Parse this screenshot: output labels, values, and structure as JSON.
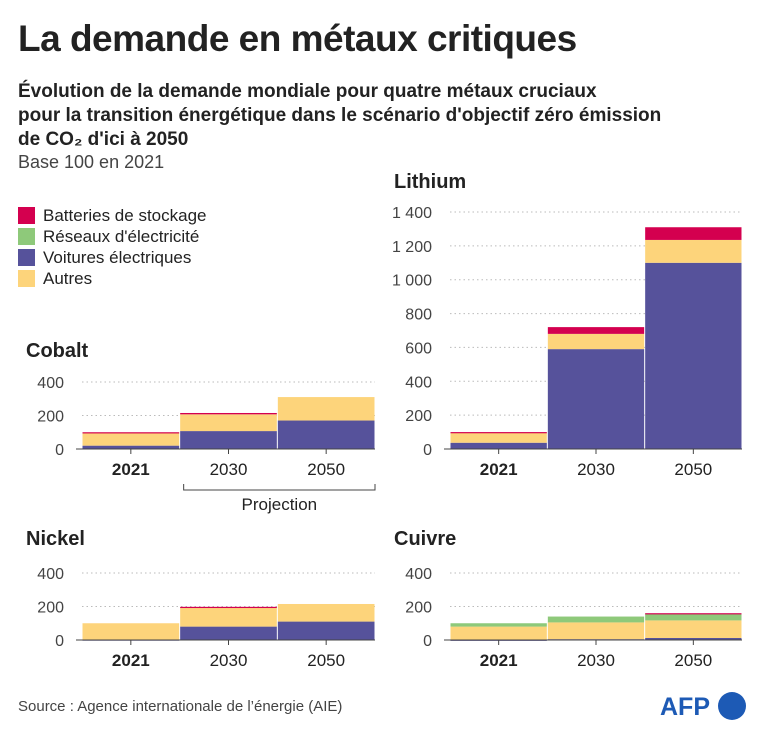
{
  "title": "La demande en métaux critiques",
  "subtitle": [
    "Évolution de la demande mondiale pour quatre métaux cruciaux",
    "pour la transition énergétique dans le scénario d'objectif zéro émission",
    "de CO₂ d'ici à 2050"
  ],
  "base": "Base 100 en 2021",
  "legend": [
    {
      "label": "Batteries de stockage",
      "color": "#d4004f"
    },
    {
      "label": "Réseaux d'électricité",
      "color": "#8ec97a"
    },
    {
      "label": "Voitures électriques",
      "color": "#56529b"
    },
    {
      "label": "Autres",
      "color": "#fdd47b"
    }
  ],
  "projection_label": "Projection",
  "source": "Source : Agence internationale de l’énergie (AIE)",
  "logo": "AFP",
  "chart_data": [
    {
      "type": "bar",
      "stacked": true,
      "title": "Cobalt",
      "categories": [
        "2021",
        "2030",
        "2050"
      ],
      "ylim": [
        0,
        400
      ],
      "yticks": [
        "0",
        "200",
        "400"
      ],
      "series": [
        {
          "name": "Voitures électriques",
          "values": [
            20,
            107,
            170
          ]
        },
        {
          "name": "Autres",
          "values": [
            79,
            100,
            140
          ]
        },
        {
          "name": "Réseaux d'électricité",
          "values": [
            0,
            0,
            0
          ]
        },
        {
          "name": "Batteries de stockage",
          "values": [
            1,
            8,
            0
          ]
        }
      ]
    },
    {
      "type": "bar",
      "stacked": true,
      "title": "Lithium",
      "categories": [
        "2021",
        "2030",
        "2050"
      ],
      "ylim": [
        0,
        1400
      ],
      "yticks": [
        "0",
        "200",
        "400",
        "600",
        "800",
        "1 000",
        "1 200",
        "1 400"
      ],
      "series": [
        {
          "name": "Voitures électriques",
          "values": [
            37,
            590,
            1100
          ]
        },
        {
          "name": "Autres",
          "values": [
            58,
            90,
            135
          ]
        },
        {
          "name": "Réseaux d'électricité",
          "values": [
            0,
            0,
            0
          ]
        },
        {
          "name": "Batteries de stockage",
          "values": [
            5,
            40,
            75
          ]
        }
      ]
    },
    {
      "type": "bar",
      "stacked": true,
      "title": "Nickel",
      "categories": [
        "2021",
        "2030",
        "2050"
      ],
      "ylim": [
        0,
        400
      ],
      "yticks": [
        "0",
        "200",
        "400"
      ],
      "series": [
        {
          "name": "Voitures électriques",
          "values": [
            3,
            80,
            110
          ]
        },
        {
          "name": "Autres",
          "values": [
            97,
            115,
            105
          ]
        },
        {
          "name": "Réseaux d'électricité",
          "values": [
            0,
            0,
            0
          ]
        },
        {
          "name": "Batteries de stockage",
          "values": [
            0,
            3,
            0
          ]
        }
      ]
    },
    {
      "type": "bar",
      "stacked": true,
      "title": "Cuivre",
      "categories": [
        "2021",
        "2030",
        "2050"
      ],
      "ylim": [
        0,
        400
      ],
      "yticks": [
        "0",
        "200",
        "400"
      ],
      "series": [
        {
          "name": "Voitures électriques",
          "values": [
            2,
            5,
            12
          ]
        },
        {
          "name": "Autres",
          "values": [
            78,
            100,
            105
          ]
        },
        {
          "name": "Réseaux d'électricité",
          "values": [
            20,
            35,
            41
          ]
        },
        {
          "name": "Batteries de stockage",
          "values": [
            0,
            0,
            2
          ]
        }
      ]
    }
  ]
}
